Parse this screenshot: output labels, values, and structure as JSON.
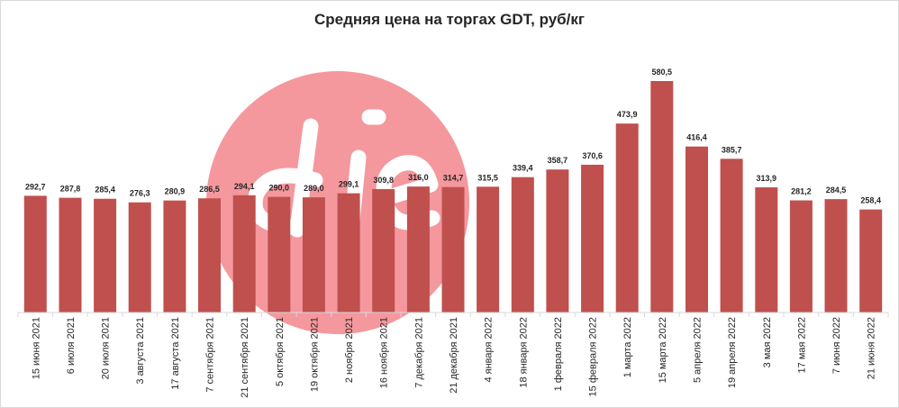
{
  "chart_data": {
    "type": "bar",
    "title": "Средняя цена на торгах GDT, руб/кг",
    "xlabel": "",
    "ylabel": "",
    "ylim": [
      0,
      640
    ],
    "grid": false,
    "bar_color": "#c0504d",
    "watermark_color": "#f4989e",
    "categories": [
      "15 июня 2021",
      "6 июля 2021",
      "20 июля 2021",
      "3 августа 2021",
      "17 августа 2021",
      "7 сентября 2021",
      "21 сентября 2021",
      "5 октября 2021",
      "19 октября 2021",
      "2 ноября 2021",
      "16 ноября 2021",
      "7 декабря 2021",
      "21 декабря 2021",
      "4 января 2022",
      "18 января 2022",
      "1 февраля 2022",
      "15 февраля 2022",
      "1 марта 2022",
      "15 марта 2022",
      "5 апреля 2022",
      "19 апреля 2022",
      "3 мая 2022",
      "17 мая 2022",
      "7 июня 2022",
      "21 июня 2022"
    ],
    "values": [
      292.7,
      287.8,
      285.4,
      276.3,
      280.9,
      286.5,
      294.1,
      290.0,
      289.0,
      299.1,
      309.8,
      316.0,
      314.7,
      315.5,
      339.4,
      358.7,
      370.6,
      473.9,
      580.5,
      416.4,
      385.7,
      313.9,
      281.2,
      284.5,
      258.4
    ],
    "labels": [
      "292,7",
      "287,8",
      "285,4",
      "276,3",
      "280,9",
      "286,5",
      "294,1",
      "290,0",
      "289,0",
      "299,1",
      "309,8",
      "316,0",
      "314,7",
      "315,5",
      "339,4",
      "358,7",
      "370,6",
      "473,9",
      "580,5",
      "416,4",
      "385,7",
      "313,9",
      "281,2",
      "284,5",
      "258,4"
    ]
  }
}
